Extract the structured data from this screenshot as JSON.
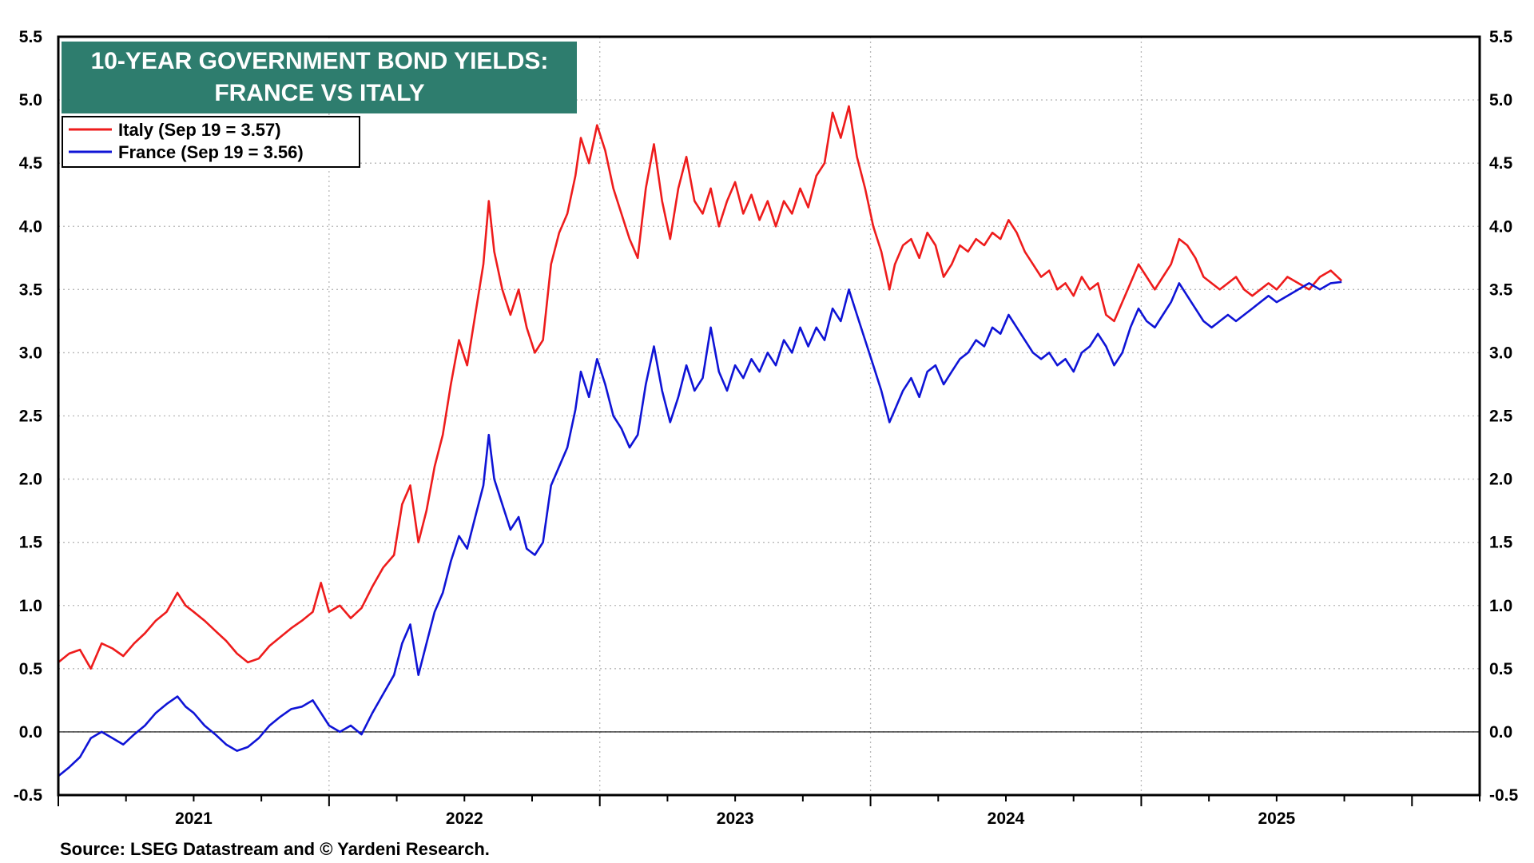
{
  "chart_data": {
    "type": "line",
    "title": "10-YEAR GOVERNMENT BOND YIELDS:",
    "subtitle": "FRANCE VS ITALY",
    "source": "Source: LSEG Datastream and © Yardeni Research.",
    "xlim": [
      2020.5,
      2025.75
    ],
    "ylim": [
      -0.5,
      5.5
    ],
    "y_ticks": [
      "-0.5",
      "0.0",
      "0.5",
      "1.0",
      "1.5",
      "2.0",
      "2.5",
      "3.0",
      "3.5",
      "4.0",
      "4.5",
      "5.0",
      "5.5"
    ],
    "x_tick_labels": [
      {
        "label": "2021",
        "x": 2021.0
      },
      {
        "label": "2022",
        "x": 2022.0
      },
      {
        "label": "2023",
        "x": 2023.0
      },
      {
        "label": "2024",
        "x": 2024.0
      },
      {
        "label": "2025",
        "x": 2025.0
      }
    ],
    "year_boundaries": [
      2021.5,
      2022.5,
      2023.5,
      2024.5
    ],
    "grid": true,
    "legend_position": "top-left",
    "series": [
      {
        "name": "Italy (Sep 19 = 3.57)",
        "color": "#ee1c1c",
        "points": [
          [
            2020.5,
            0.55
          ],
          [
            2020.54,
            0.62
          ],
          [
            2020.58,
            0.65
          ],
          [
            2020.62,
            0.5
          ],
          [
            2020.66,
            0.7
          ],
          [
            2020.7,
            0.66
          ],
          [
            2020.74,
            0.6
          ],
          [
            2020.78,
            0.7
          ],
          [
            2020.82,
            0.78
          ],
          [
            2020.86,
            0.88
          ],
          [
            2020.9,
            0.95
          ],
          [
            2020.94,
            1.1
          ],
          [
            2020.97,
            1.0
          ],
          [
            2021.0,
            0.95
          ],
          [
            2021.04,
            0.88
          ],
          [
            2021.08,
            0.8
          ],
          [
            2021.12,
            0.72
          ],
          [
            2021.16,
            0.62
          ],
          [
            2021.2,
            0.55
          ],
          [
            2021.24,
            0.58
          ],
          [
            2021.28,
            0.68
          ],
          [
            2021.32,
            0.75
          ],
          [
            2021.36,
            0.82
          ],
          [
            2021.4,
            0.88
          ],
          [
            2021.44,
            0.95
          ],
          [
            2021.47,
            1.18
          ],
          [
            2021.5,
            0.95
          ],
          [
            2021.54,
            1.0
          ],
          [
            2021.58,
            0.9
          ],
          [
            2021.62,
            0.98
          ],
          [
            2021.66,
            1.15
          ],
          [
            2021.7,
            1.3
          ],
          [
            2021.74,
            1.4
          ],
          [
            2021.77,
            1.8
          ],
          [
            2021.8,
            1.95
          ],
          [
            2021.83,
            1.5
          ],
          [
            2021.86,
            1.75
          ],
          [
            2021.89,
            2.1
          ],
          [
            2021.92,
            2.35
          ],
          [
            2021.95,
            2.75
          ],
          [
            2021.98,
            3.1
          ],
          [
            2022.01,
            2.9
          ],
          [
            2022.04,
            3.3
          ],
          [
            2022.07,
            3.7
          ],
          [
            2022.09,
            4.2
          ],
          [
            2022.11,
            3.8
          ],
          [
            2022.14,
            3.5
          ],
          [
            2022.17,
            3.3
          ],
          [
            2022.2,
            3.5
          ],
          [
            2022.23,
            3.2
          ],
          [
            2022.26,
            3.0
          ],
          [
            2022.29,
            3.1
          ],
          [
            2022.32,
            3.7
          ],
          [
            2022.35,
            3.95
          ],
          [
            2022.38,
            4.1
          ],
          [
            2022.41,
            4.4
          ],
          [
            2022.43,
            4.7
          ],
          [
            2022.46,
            4.5
          ],
          [
            2022.49,
            4.8
          ],
          [
            2022.52,
            4.6
          ],
          [
            2022.55,
            4.3
          ],
          [
            2022.58,
            4.1
          ],
          [
            2022.61,
            3.9
          ],
          [
            2022.64,
            3.75
          ],
          [
            2022.67,
            4.3
          ],
          [
            2022.7,
            4.65
          ],
          [
            2022.73,
            4.2
          ],
          [
            2022.76,
            3.9
          ],
          [
            2022.79,
            4.3
          ],
          [
            2022.82,
            4.55
          ],
          [
            2022.85,
            4.2
          ],
          [
            2022.88,
            4.1
          ],
          [
            2022.91,
            4.3
          ],
          [
            2022.94,
            4.0
          ],
          [
            2022.97,
            4.2
          ],
          [
            2023.0,
            4.35
          ],
          [
            2023.03,
            4.1
          ],
          [
            2023.06,
            4.25
          ],
          [
            2023.09,
            4.05
          ],
          [
            2023.12,
            4.2
          ],
          [
            2023.15,
            4.0
          ],
          [
            2023.18,
            4.2
          ],
          [
            2023.21,
            4.1
          ],
          [
            2023.24,
            4.3
          ],
          [
            2023.27,
            4.15
          ],
          [
            2023.3,
            4.4
          ],
          [
            2023.33,
            4.5
          ],
          [
            2023.36,
            4.9
          ],
          [
            2023.39,
            4.7
          ],
          [
            2023.42,
            4.95
          ],
          [
            2023.45,
            4.55
          ],
          [
            2023.48,
            4.3
          ],
          [
            2023.51,
            4.0
          ],
          [
            2023.54,
            3.8
          ],
          [
            2023.57,
            3.5
          ],
          [
            2023.59,
            3.7
          ],
          [
            2023.62,
            3.85
          ],
          [
            2023.65,
            3.9
          ],
          [
            2023.68,
            3.75
          ],
          [
            2023.71,
            3.95
          ],
          [
            2023.74,
            3.85
          ],
          [
            2023.77,
            3.6
          ],
          [
            2023.8,
            3.7
          ],
          [
            2023.83,
            3.85
          ],
          [
            2023.86,
            3.8
          ],
          [
            2023.89,
            3.9
          ],
          [
            2023.92,
            3.85
          ],
          [
            2023.95,
            3.95
          ],
          [
            2023.98,
            3.9
          ],
          [
            2024.01,
            4.05
          ],
          [
            2024.04,
            3.95
          ],
          [
            2024.07,
            3.8
          ],
          [
            2024.1,
            3.7
          ],
          [
            2024.13,
            3.6
          ],
          [
            2024.16,
            3.65
          ],
          [
            2024.19,
            3.5
          ],
          [
            2024.22,
            3.55
          ],
          [
            2024.25,
            3.45
          ],
          [
            2024.28,
            3.6
          ],
          [
            2024.31,
            3.5
          ],
          [
            2024.34,
            3.55
          ],
          [
            2024.37,
            3.3
          ],
          [
            2024.4,
            3.25
          ],
          [
            2024.43,
            3.4
          ],
          [
            2024.46,
            3.55
          ],
          [
            2024.49,
            3.7
          ],
          [
            2024.52,
            3.6
          ],
          [
            2024.55,
            3.5
          ],
          [
            2024.58,
            3.6
          ],
          [
            2024.61,
            3.7
          ],
          [
            2024.64,
            3.9
          ],
          [
            2024.67,
            3.85
          ],
          [
            2024.7,
            3.75
          ],
          [
            2024.73,
            3.6
          ],
          [
            2024.76,
            3.55
          ],
          [
            2024.79,
            3.5
          ],
          [
            2024.82,
            3.55
          ],
          [
            2024.85,
            3.6
          ],
          [
            2024.88,
            3.5
          ],
          [
            2024.91,
            3.45
          ],
          [
            2024.94,
            3.5
          ],
          [
            2024.97,
            3.55
          ],
          [
            2025.0,
            3.5
          ],
          [
            2025.04,
            3.6
          ],
          [
            2025.08,
            3.55
          ],
          [
            2025.12,
            3.5
          ],
          [
            2025.16,
            3.6
          ],
          [
            2025.2,
            3.65
          ],
          [
            2025.24,
            3.57
          ]
        ]
      },
      {
        "name": "France (Sep 19 = 3.56)",
        "color": "#0f14d6",
        "points": [
          [
            2020.5,
            -0.35
          ],
          [
            2020.54,
            -0.28
          ],
          [
            2020.58,
            -0.2
          ],
          [
            2020.62,
            -0.05
          ],
          [
            2020.66,
            0.0
          ],
          [
            2020.7,
            -0.05
          ],
          [
            2020.74,
            -0.1
          ],
          [
            2020.78,
            -0.02
          ],
          [
            2020.82,
            0.05
          ],
          [
            2020.86,
            0.15
          ],
          [
            2020.9,
            0.22
          ],
          [
            2020.94,
            0.28
          ],
          [
            2020.97,
            0.2
          ],
          [
            2021.0,
            0.15
          ],
          [
            2021.04,
            0.05
          ],
          [
            2021.08,
            -0.02
          ],
          [
            2021.12,
            -0.1
          ],
          [
            2021.16,
            -0.15
          ],
          [
            2021.2,
            -0.12
          ],
          [
            2021.24,
            -0.05
          ],
          [
            2021.28,
            0.05
          ],
          [
            2021.32,
            0.12
          ],
          [
            2021.36,
            0.18
          ],
          [
            2021.4,
            0.2
          ],
          [
            2021.44,
            0.25
          ],
          [
            2021.47,
            0.15
          ],
          [
            2021.5,
            0.05
          ],
          [
            2021.54,
            0.0
          ],
          [
            2021.58,
            0.05
          ],
          [
            2021.62,
            -0.02
          ],
          [
            2021.66,
            0.15
          ],
          [
            2021.7,
            0.3
          ],
          [
            2021.74,
            0.45
          ],
          [
            2021.77,
            0.7
          ],
          [
            2021.8,
            0.85
          ],
          [
            2021.83,
            0.45
          ],
          [
            2021.86,
            0.7
          ],
          [
            2021.89,
            0.95
          ],
          [
            2021.92,
            1.1
          ],
          [
            2021.95,
            1.35
          ],
          [
            2021.98,
            1.55
          ],
          [
            2022.01,
            1.45
          ],
          [
            2022.04,
            1.7
          ],
          [
            2022.07,
            1.95
          ],
          [
            2022.09,
            2.35
          ],
          [
            2022.11,
            2.0
          ],
          [
            2022.14,
            1.8
          ],
          [
            2022.17,
            1.6
          ],
          [
            2022.2,
            1.7
          ],
          [
            2022.23,
            1.45
          ],
          [
            2022.26,
            1.4
          ],
          [
            2022.29,
            1.5
          ],
          [
            2022.32,
            1.95
          ],
          [
            2022.35,
            2.1
          ],
          [
            2022.38,
            2.25
          ],
          [
            2022.41,
            2.55
          ],
          [
            2022.43,
            2.85
          ],
          [
            2022.46,
            2.65
          ],
          [
            2022.49,
            2.95
          ],
          [
            2022.52,
            2.75
          ],
          [
            2022.55,
            2.5
          ],
          [
            2022.58,
            2.4
          ],
          [
            2022.61,
            2.25
          ],
          [
            2022.64,
            2.35
          ],
          [
            2022.67,
            2.75
          ],
          [
            2022.7,
            3.05
          ],
          [
            2022.73,
            2.7
          ],
          [
            2022.76,
            2.45
          ],
          [
            2022.79,
            2.65
          ],
          [
            2022.82,
            2.9
          ],
          [
            2022.85,
            2.7
          ],
          [
            2022.88,
            2.8
          ],
          [
            2022.91,
            3.2
          ],
          [
            2022.94,
            2.85
          ],
          [
            2022.97,
            2.7
          ],
          [
            2023.0,
            2.9
          ],
          [
            2023.03,
            2.8
          ],
          [
            2023.06,
            2.95
          ],
          [
            2023.09,
            2.85
          ],
          [
            2023.12,
            3.0
          ],
          [
            2023.15,
            2.9
          ],
          [
            2023.18,
            3.1
          ],
          [
            2023.21,
            3.0
          ],
          [
            2023.24,
            3.2
          ],
          [
            2023.27,
            3.05
          ],
          [
            2023.3,
            3.2
          ],
          [
            2023.33,
            3.1
          ],
          [
            2023.36,
            3.35
          ],
          [
            2023.39,
            3.25
          ],
          [
            2023.42,
            3.5
          ],
          [
            2023.45,
            3.3
          ],
          [
            2023.48,
            3.1
          ],
          [
            2023.51,
            2.9
          ],
          [
            2023.54,
            2.7
          ],
          [
            2023.57,
            2.45
          ],
          [
            2023.59,
            2.55
          ],
          [
            2023.62,
            2.7
          ],
          [
            2023.65,
            2.8
          ],
          [
            2023.68,
            2.65
          ],
          [
            2023.71,
            2.85
          ],
          [
            2023.74,
            2.9
          ],
          [
            2023.77,
            2.75
          ],
          [
            2023.8,
            2.85
          ],
          [
            2023.83,
            2.95
          ],
          [
            2023.86,
            3.0
          ],
          [
            2023.89,
            3.1
          ],
          [
            2023.92,
            3.05
          ],
          [
            2023.95,
            3.2
          ],
          [
            2023.98,
            3.15
          ],
          [
            2024.01,
            3.3
          ],
          [
            2024.04,
            3.2
          ],
          [
            2024.07,
            3.1
          ],
          [
            2024.1,
            3.0
          ],
          [
            2024.13,
            2.95
          ],
          [
            2024.16,
            3.0
          ],
          [
            2024.19,
            2.9
          ],
          [
            2024.22,
            2.95
          ],
          [
            2024.25,
            2.85
          ],
          [
            2024.28,
            3.0
          ],
          [
            2024.31,
            3.05
          ],
          [
            2024.34,
            3.15
          ],
          [
            2024.37,
            3.05
          ],
          [
            2024.4,
            2.9
          ],
          [
            2024.43,
            3.0
          ],
          [
            2024.46,
            3.2
          ],
          [
            2024.49,
            3.35
          ],
          [
            2024.52,
            3.25
          ],
          [
            2024.55,
            3.2
          ],
          [
            2024.58,
            3.3
          ],
          [
            2024.61,
            3.4
          ],
          [
            2024.64,
            3.55
          ],
          [
            2024.67,
            3.45
          ],
          [
            2024.7,
            3.35
          ],
          [
            2024.73,
            3.25
          ],
          [
            2024.76,
            3.2
          ],
          [
            2024.79,
            3.25
          ],
          [
            2024.82,
            3.3
          ],
          [
            2024.85,
            3.25
          ],
          [
            2024.88,
            3.3
          ],
          [
            2024.91,
            3.35
          ],
          [
            2024.94,
            3.4
          ],
          [
            2024.97,
            3.45
          ],
          [
            2025.0,
            3.4
          ],
          [
            2025.04,
            3.45
          ],
          [
            2025.08,
            3.5
          ],
          [
            2025.12,
            3.55
          ],
          [
            2025.16,
            3.5
          ],
          [
            2025.2,
            3.55
          ],
          [
            2025.24,
            3.56
          ]
        ]
      }
    ]
  }
}
